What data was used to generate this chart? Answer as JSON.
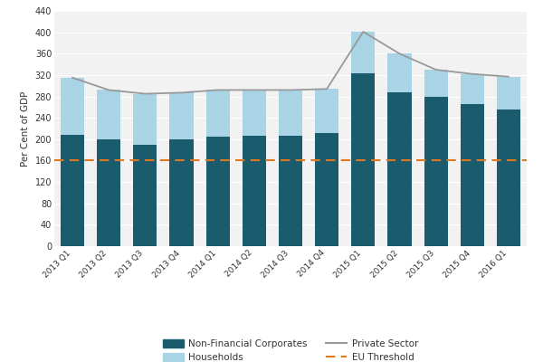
{
  "categories": [
    "2013 Q1",
    "2013 Q2",
    "2013 Q3",
    "2013 Q4",
    "2014 Q1",
    "2014 Q2",
    "2014 Q3",
    "2014 Q4",
    "2015 Q1",
    "2015 Q2",
    "2015 Q3",
    "2015 Q4",
    "2016 Q1"
  ],
  "non_financial": [
    208,
    200,
    190,
    200,
    205,
    207,
    207,
    212,
    323,
    288,
    280,
    265,
    255
  ],
  "households": [
    107,
    92,
    95,
    87,
    87,
    85,
    85,
    82,
    78,
    72,
    50,
    57,
    62
  ],
  "private_sector": [
    315,
    292,
    285,
    287,
    292,
    292,
    292,
    294,
    401,
    360,
    330,
    322,
    317
  ],
  "eu_threshold": 160,
  "nfc_color": "#1a5c6e",
  "hh_color": "#a8d4e6",
  "ps_color": "#999999",
  "eu_color": "#e07820",
  "ylabel": "Per Cent of GDP",
  "ylim": [
    0,
    440
  ],
  "yticks": [
    0,
    40,
    80,
    120,
    160,
    200,
    240,
    280,
    320,
    360,
    400,
    440
  ],
  "legend_nfc": "Non-Financial Corporates",
  "legend_hh": "Households",
  "legend_ps": "Private Sector",
  "legend_eu": "EU Threshold",
  "fig_facecolor": "#ffffff",
  "plot_facecolor": "#f2f2f2",
  "grid_color": "#ffffff"
}
